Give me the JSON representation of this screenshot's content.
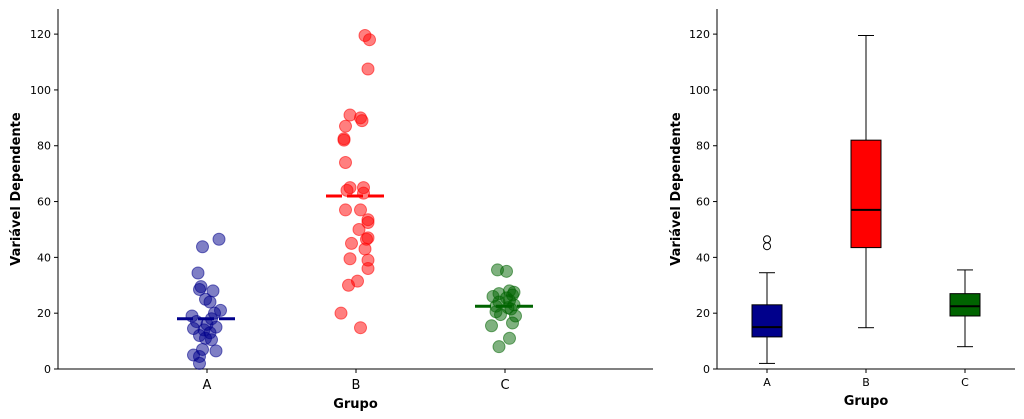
{
  "chart_data": [
    {
      "type": "scatter",
      "subtype": "strip-plot-with-mean",
      "xlabel": "Grupo",
      "ylabel": "Variável Dependente",
      "ylim": [
        0,
        129
      ],
      "yticks": [
        0,
        20,
        40,
        60,
        80,
        100,
        120
      ],
      "categories": [
        "A",
        "B",
        "C"
      ],
      "grid": false,
      "series": [
        {
          "name": "A",
          "color": "#00008b",
          "mean": 18,
          "points": [
            [
              -0.03,
              43.8
            ],
            [
              0.08,
              46.5
            ],
            [
              -0.06,
              34.4
            ],
            [
              -0.04,
              29.5
            ],
            [
              -0.05,
              28.5
            ],
            [
              0.04,
              28.0
            ],
            [
              -0.01,
              25.0
            ],
            [
              0.02,
              24.0
            ],
            [
              0.09,
              21.0
            ],
            [
              0.05,
              20.0
            ],
            [
              -0.1,
              19.0
            ],
            [
              0.03,
              18.0
            ],
            [
              -0.07,
              17.0
            ],
            [
              0.0,
              16.0
            ],
            [
              0.06,
              15.0
            ],
            [
              -0.09,
              14.5
            ],
            [
              -0.02,
              14.0
            ],
            [
              0.02,
              13.0
            ],
            [
              -0.05,
              12.0
            ],
            [
              -0.01,
              11.0
            ],
            [
              0.03,
              10.5
            ],
            [
              -0.03,
              7.0
            ],
            [
              0.06,
              6.5
            ],
            [
              -0.09,
              5.0
            ],
            [
              -0.05,
              4.5
            ],
            [
              -0.05,
              2.0
            ]
          ]
        },
        {
          "name": "B",
          "color": "#ff0000",
          "mean": 62,
          "points": [
            [
              0.06,
              119.5
            ],
            [
              0.09,
              118.0
            ],
            [
              0.08,
              107.5
            ],
            [
              -0.04,
              91.0
            ],
            [
              0.03,
              90.0
            ],
            [
              0.04,
              89.0
            ],
            [
              -0.07,
              87.0
            ],
            [
              -0.08,
              82.5
            ],
            [
              -0.08,
              82.0
            ],
            [
              -0.07,
              74.0
            ],
            [
              -0.04,
              65.0
            ],
            [
              0.05,
              65.0
            ],
            [
              -0.06,
              64.0
            ],
            [
              0.05,
              63.0
            ],
            [
              -0.07,
              57.0
            ],
            [
              0.03,
              57.0
            ],
            [
              0.08,
              53.5
            ],
            [
              0.08,
              52.5
            ],
            [
              0.02,
              50.0
            ],
            [
              0.08,
              47.0
            ],
            [
              0.07,
              46.5
            ],
            [
              -0.03,
              45.0
            ],
            [
              0.06,
              43.0
            ],
            [
              -0.04,
              39.5
            ],
            [
              0.08,
              39.0
            ],
            [
              0.08,
              36.0
            ],
            [
              0.01,
              31.5
            ],
            [
              -0.05,
              30.0
            ],
            [
              -0.1,
              20.0
            ],
            [
              0.03,
              14.8
            ]
          ]
        },
        {
          "name": "C",
          "color": "#006400",
          "mean": 22.5,
          "points": [
            [
              -0.05,
              35.5
            ],
            [
              0.01,
              35.0
            ],
            [
              0.03,
              28.0
            ],
            [
              0.06,
              27.5
            ],
            [
              -0.04,
              27.0
            ],
            [
              0.05,
              26.5
            ],
            [
              -0.08,
              26.0
            ],
            [
              0.01,
              25.5
            ],
            [
              0.03,
              24.5
            ],
            [
              -0.04,
              24.0
            ],
            [
              0.06,
              23.0
            ],
            [
              -0.06,
              22.5
            ],
            [
              0.02,
              22.0
            ],
            [
              0.04,
              21.5
            ],
            [
              -0.06,
              20.5
            ],
            [
              -0.03,
              19.5
            ],
            [
              0.07,
              19.0
            ],
            [
              0.05,
              16.5
            ],
            [
              -0.09,
              15.5
            ],
            [
              0.03,
              11.0
            ],
            [
              -0.04,
              8.0
            ]
          ]
        }
      ]
    },
    {
      "type": "box",
      "xlabel": "Grupo",
      "ylabel": "Variável Dependente",
      "ylim": [
        0,
        129
      ],
      "yticks": [
        0,
        20,
        40,
        60,
        80,
        100,
        120
      ],
      "categories": [
        "A",
        "B",
        "C"
      ],
      "grid": false,
      "boxes": [
        {
          "name": "A",
          "color": "#00008b",
          "whislo": 2,
          "q1": 11.5,
          "med": 15,
          "q3": 23,
          "whishi": 34.5,
          "fliers": [
            44,
            46.5
          ]
        },
        {
          "name": "B",
          "color": "#ff0000",
          "whislo": 14.8,
          "q1": 43.5,
          "med": 57,
          "q3": 82,
          "whishi": 119.5,
          "fliers": []
        },
        {
          "name": "C",
          "color": "#006400",
          "whislo": 8,
          "q1": 19,
          "med": 22.5,
          "q3": 27,
          "whishi": 35.5,
          "fliers": []
        }
      ]
    }
  ]
}
